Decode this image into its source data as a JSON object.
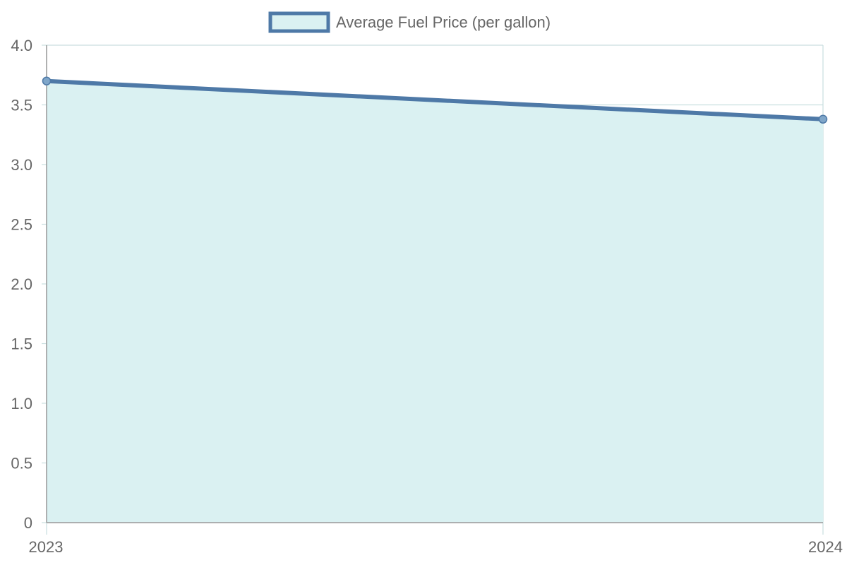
{
  "chart_data": {
    "type": "area",
    "x": [
      "2023",
      "2024"
    ],
    "series": [
      {
        "name": "Average Fuel Price (per gallon)",
        "values": [
          3.7,
          3.38
        ],
        "line_color": "#4E79A7",
        "fill_color": "#DAF1F2"
      }
    ],
    "ylim": [
      0,
      4.0
    ],
    "yticks": [
      "0",
      "0.5",
      "1.0",
      "1.5",
      "2.0",
      "2.5",
      "3.0",
      "3.5",
      "4.0"
    ],
    "xticks": [
      "2023",
      "2024"
    ],
    "grid": true,
    "legend_position": "top-center"
  },
  "colors": {
    "axis": "#999999",
    "grid": "#c9dedf",
    "text": "#666666"
  }
}
